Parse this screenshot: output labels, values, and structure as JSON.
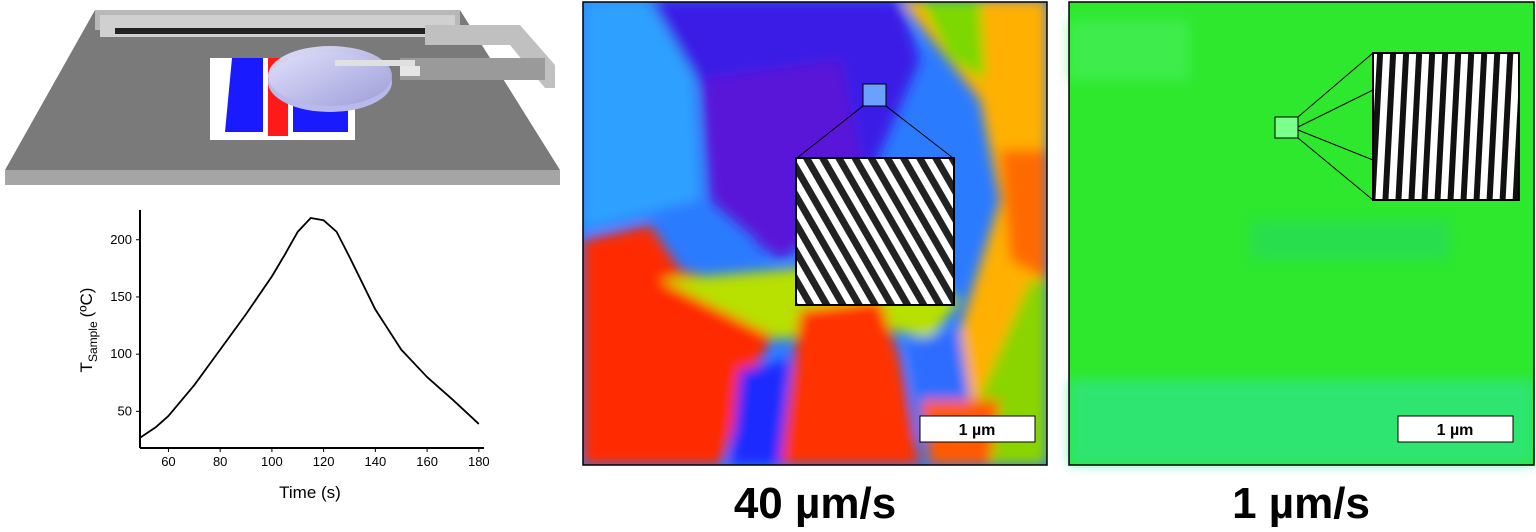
{
  "chart_data": {
    "type": "line",
    "x": [
      49,
      55,
      60,
      70,
      80,
      90,
      100,
      105,
      110,
      115,
      120,
      125,
      130,
      140,
      150,
      160,
      170,
      180
    ],
    "series": [
      {
        "color": "#000000",
        "values": [
          27,
          36,
          46,
          73,
          104,
          135,
          168,
          187,
          207,
          219,
          217,
          207,
          185,
          139,
          104,
          80,
          60,
          39
        ]
      }
    ],
    "xlim": [
      49,
      182
    ],
    "ylim": [
      18,
      226
    ],
    "xticks": [
      60,
      80,
      100,
      120,
      140,
      160,
      180
    ],
    "yticks": [
      50,
      100,
      150,
      200
    ],
    "xlabel": "Time (s)",
    "ylabel_main": "T",
    "ylabel_sub": "Sample",
    "ylabel_unit": "(ºC)",
    "grid": false
  },
  "panels": [
    {
      "caption": "40 µm/s",
      "scale_bar": "1 µm"
    },
    {
      "caption": "1 µm/s",
      "scale_bar": "1 µm"
    }
  ]
}
